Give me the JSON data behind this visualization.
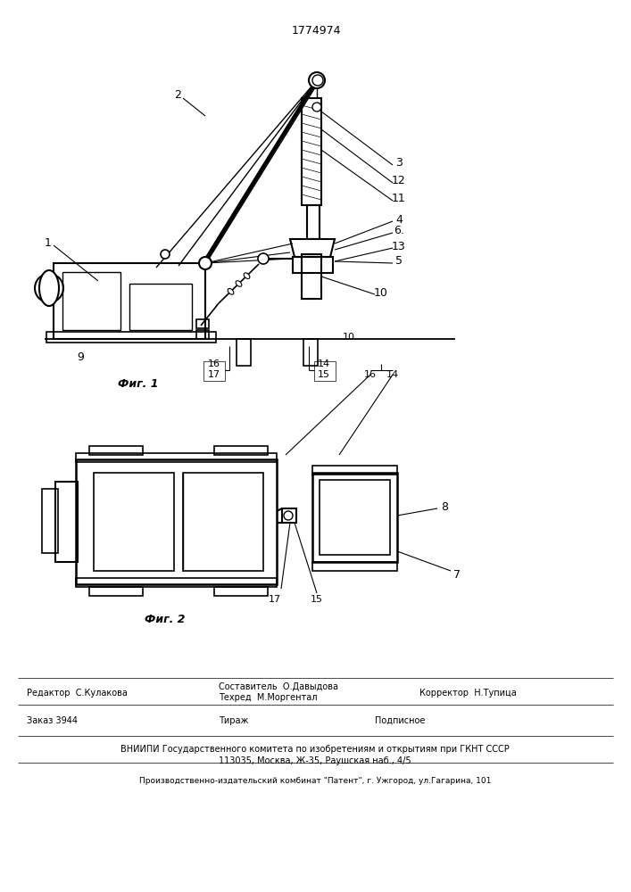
{
  "patent_number": "1774974",
  "fig1_label": "Фиг. 1",
  "fig2_label": "Фиг. 2",
  "editor_line": "Редактор  С.Кулакова",
  "composer_line": "Составитель  О.Давыдова",
  "techred_line": "Техред  М.Моргентал",
  "corrector_line": "Корректор  Н.Тупица",
  "zakaz_line": "Заказ 3944",
  "tirazh_line": "Тираж",
  "podpisnoe_line": "Подписное",
  "vniiipi_line": "ВНИИПИ Государственного комитета по изобретениям и открытиям при ГКНТ СССР",
  "address_line": "113035, Москва, Ж-35, Раушская наб., 4/5",
  "publisher_line": "Производственно-издательский комбинат \"Патент\", г. Ужгород, ул.Гагарина, 101",
  "bg_color": "#ffffff",
  "line_color": "#000000"
}
